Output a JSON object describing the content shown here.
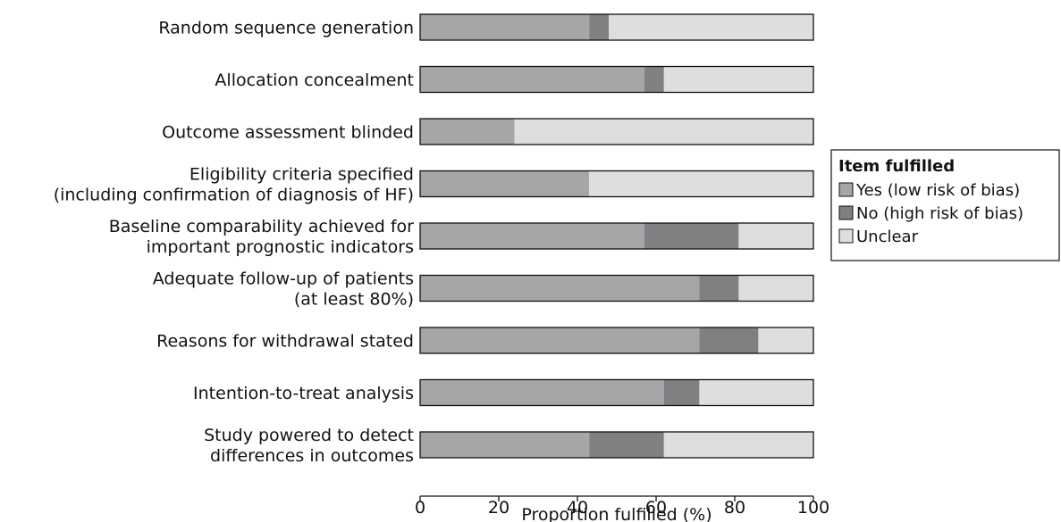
{
  "chart_data": {
    "type": "bar",
    "orientation": "horizontal",
    "stacked": true,
    "categories": [
      [
        "Random sequence generation"
      ],
      [
        "Allocation concealment"
      ],
      [
        "Outcome assessment blinded"
      ],
      [
        "Eligibility criteria specified",
        "(including confirmation of diagnosis of HF)"
      ],
      [
        "Baseline comparability achieved for",
        "important prognostic indicators"
      ],
      [
        "Adequate follow-up of patients",
        "(at least 80%)"
      ],
      [
        "Reasons for withdrawal stated"
      ],
      [
        "Intention-to-treat analysis"
      ],
      [
        "Study powered to detect",
        "differences in outcomes"
      ]
    ],
    "series": [
      {
        "name": "Yes (low risk of bias)",
        "color": "#a6a6a9",
        "values": [
          43,
          57,
          24,
          43,
          57,
          71,
          71,
          62,
          43
        ]
      },
      {
        "name": "No (high risk of bias)",
        "color": "#808083",
        "values": [
          5,
          5,
          0,
          0,
          24,
          10,
          15,
          9,
          19
        ]
      },
      {
        "name": "Unclear",
        "color": "#dedee0",
        "values": [
          52,
          38,
          76,
          57,
          19,
          19,
          14,
          29,
          38
        ]
      }
    ],
    "xlabel": "Proportion fulfilled (%)",
    "xlim": [
      0,
      100
    ],
    "xticks": [
      0,
      20,
      40,
      60,
      80,
      100
    ],
    "grid": false,
    "legend": {
      "title": "Item fulfilled",
      "placement": "right"
    }
  }
}
